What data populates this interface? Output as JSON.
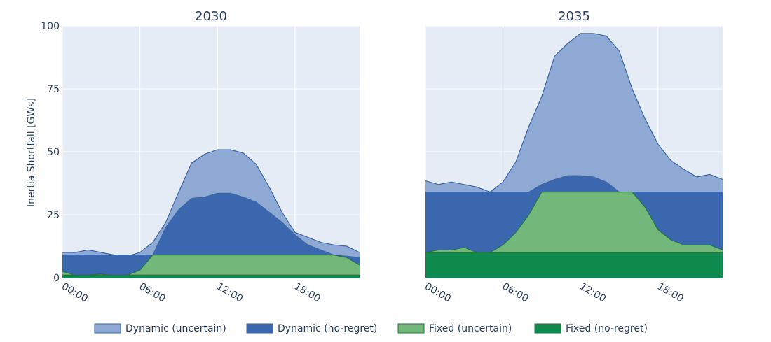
{
  "chart_data": {
    "type": "area",
    "ylabel": "Inertia Shortfall [GWs]",
    "ylim": [
      0,
      100
    ],
    "y_ticks": [
      0,
      25,
      50,
      75,
      100
    ],
    "x_tick_labels": [
      "00:00",
      "06:00",
      "12:00",
      "18:00"
    ],
    "x_tick_hours": [
      0,
      6,
      12,
      18
    ],
    "x_range_hours": [
      0,
      23
    ],
    "hours": [
      0,
      1,
      2,
      3,
      4,
      5,
      6,
      7,
      8,
      9,
      10,
      11,
      12,
      13,
      14,
      15,
      16,
      17,
      18,
      19,
      20,
      21,
      22,
      23
    ],
    "grid": true,
    "legend_position": "bottom",
    "legend": [
      {
        "key": "dyn_unc",
        "label": "Dynamic (uncertain)"
      },
      {
        "key": "dyn_nr",
        "label": "Dynamic (no-regret)"
      },
      {
        "key": "fix_unc",
        "label": "Fixed (uncertain)"
      },
      {
        "key": "fix_nr",
        "label": "Fixed (no-regret)"
      }
    ],
    "colors": {
      "dyn_unc": "#8eaad4",
      "dyn_nr": "#3a67ad",
      "fix_unc": "#74b77a",
      "fix_nr": "#0e8a4f",
      "line": "#3a67ad",
      "green_line": "#1f7a35",
      "plot_bg": "#e5ecf6",
      "grid": "#ffffff"
    },
    "panels": [
      {
        "title": "2030",
        "series": {
          "fix_nr": [
            1,
            1,
            1,
            1,
            1,
            1,
            1,
            1,
            1,
            1,
            1,
            1,
            1,
            1,
            1,
            1,
            1,
            1,
            1,
            1,
            1,
            1,
            1,
            1
          ],
          "fix_unc": [
            2.5,
            1,
            1,
            1.5,
            0.5,
            1,
            3,
            9,
            9,
            9,
            9,
            9,
            9,
            9,
            9,
            9,
            9,
            9,
            9,
            9,
            9,
            9,
            8,
            5
          ],
          "dyn_nr": [
            9,
            9,
            9,
            9,
            9,
            9,
            9,
            9,
            20,
            27,
            31.5,
            32,
            33.5,
            33.5,
            32,
            30,
            26,
            22,
            17,
            13,
            11,
            9,
            8.5,
            8
          ],
          "dyn_unc": [
            10,
            10,
            11,
            10,
            9,
            8.5,
            10,
            14,
            22,
            34,
            45.5,
            49,
            50.8,
            50.8,
            49.5,
            45,
            36,
            26,
            18,
            16,
            14,
            13,
            12.5,
            10
          ]
        }
      },
      {
        "title": "2035",
        "series": {
          "fix_nr": [
            10,
            10,
            10,
            10,
            10,
            10,
            10,
            10,
            10,
            10,
            10,
            10,
            10,
            10,
            10,
            10,
            10,
            10,
            10,
            10,
            10,
            10,
            10,
            10
          ],
          "fix_unc": [
            10,
            11,
            11,
            12,
            10,
            10,
            13,
            18,
            25,
            34,
            34,
            34,
            34,
            34,
            34,
            34,
            34,
            28,
            19,
            15,
            13,
            13,
            13,
            11
          ],
          "dyn_nr": [
            34,
            34,
            34,
            34,
            34,
            34,
            34,
            34,
            34,
            37,
            39,
            40.5,
            40.5,
            40,
            38,
            34,
            34,
            34,
            34,
            34,
            34,
            34,
            34,
            34
          ],
          "dyn_unc": [
            38.5,
            37,
            38,
            37,
            36,
            34,
            38,
            46,
            60,
            72,
            88,
            93,
            97,
            97,
            96,
            90,
            75,
            63,
            53,
            46.5,
            43,
            40,
            41,
            39
          ]
        }
      }
    ]
  }
}
